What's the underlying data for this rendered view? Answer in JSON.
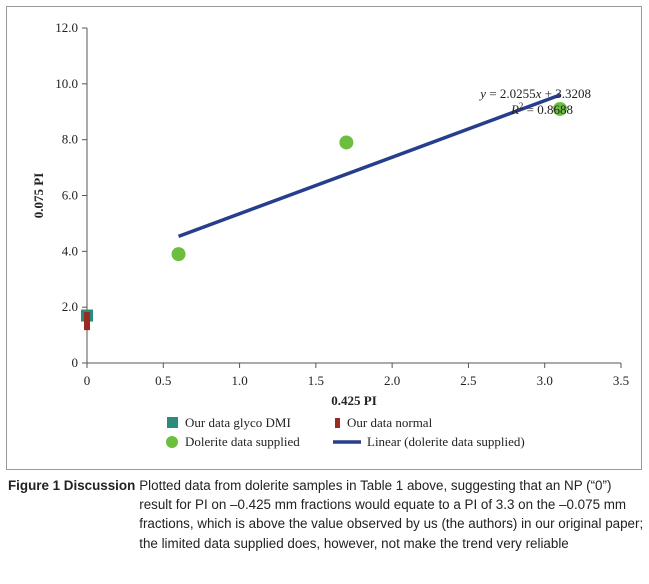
{
  "chart_data": {
    "type": "scatter",
    "xlabel": "0.425 PI",
    "ylabel": "0.075 PI",
    "xlim": [
      0,
      3.5
    ],
    "ylim": [
      0,
      12
    ],
    "x_ticks": [
      "0",
      "0.5",
      "1.0",
      "1.5",
      "2.0",
      "2.5",
      "3.0",
      "3.5"
    ],
    "y_ticks": [
      "0",
      "2.0",
      "4.0",
      "6.0",
      "8.0",
      "10.0",
      "12.0"
    ],
    "x_tick_values": [
      0,
      0.5,
      1.0,
      1.5,
      2.0,
      2.5,
      3.0,
      3.5
    ],
    "y_tick_values": [
      0,
      2,
      4,
      6,
      8,
      10,
      12
    ],
    "grid": false,
    "legend_position": "bottom",
    "series": [
      {
        "name": "Our data glyco DMI",
        "marker": "square",
        "color": "#2a8c7a",
        "points": [
          {
            "x": 0,
            "y": 1.7
          }
        ]
      },
      {
        "name": "Our data normal",
        "marker": "thin-rect",
        "color": "#9b2a22",
        "points": [
          {
            "x": 0,
            "y": 1.5
          }
        ]
      },
      {
        "name": "Dolerite data supplied",
        "marker": "circle",
        "color": "#6cbf3e",
        "points": [
          {
            "x": 0.6,
            "y": 3.9
          },
          {
            "x": 1.7,
            "y": 7.9
          },
          {
            "x": 3.1,
            "y": 9.1
          }
        ]
      },
      {
        "name": "Linear (dolerite data supplied)",
        "marker": "line",
        "color": "#273e8c",
        "slope": 2.0255,
        "intercept": 3.3208,
        "x_range": [
          0.6,
          3.1
        ]
      }
    ],
    "annotation": {
      "equation_lhs": "y",
      "equation_rhs": " = 2.0255",
      "equation_var": "x",
      "equation_tail": " + 3.3208",
      "r2_label": "R",
      "r2_sup": "2",
      "r2_value": " = 0.8688"
    }
  },
  "caption": {
    "label": "Figure 1 Discussion",
    "text": "Plotted data from dolerite samples in Table 1 above, suggesting that an NP (“0”) result for PI on –0.425 mm fractions would equate to a PI of 3.3 on the –0.075 mm fractions, which is above the value observed by us (the authors) in our original paper; the limited data supplied does, however, not make the trend very reliable"
  }
}
